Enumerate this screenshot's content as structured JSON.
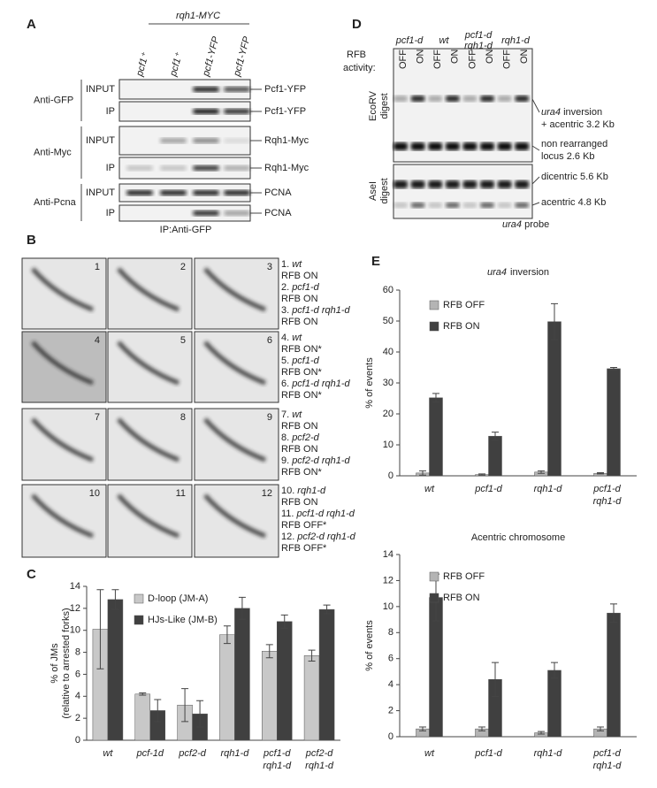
{
  "panel_a": {
    "label": "A",
    "header": "rqh1-MYC",
    "lanes": [
      "pcf1⁺",
      "pcf1⁺",
      "pcf1-YFP",
      "pcf1-YFP"
    ],
    "groups": [
      {
        "name": "Anti-GFP",
        "rows": [
          {
            "label": "INPUT",
            "band": "Pcf1-YFP"
          },
          {
            "label": "IP",
            "band": "Pcf1-YFP"
          }
        ]
      },
      {
        "name": "Anti-Myc",
        "rows": [
          {
            "label": "INPUT",
            "band": "Rqh1-Myc"
          },
          {
            "label": "IP",
            "band": "Rqh1-Myc"
          }
        ]
      },
      {
        "name": "Anti-Pcna",
        "rows": [
          {
            "label": "INPUT",
            "band": "PCNA"
          },
          {
            "label": "IP",
            "band": "PCNA"
          }
        ]
      }
    ],
    "footer": "IP:Anti-GFP"
  },
  "panel_b": {
    "label": "B",
    "gels": [
      {
        "number": "1",
        "index": "1.",
        "strain": "wt",
        "rfb": "RFB ON"
      },
      {
        "number": "2",
        "index": "2.",
        "strain": "pcf1-d",
        "rfb": "RFB ON"
      },
      {
        "number": "3",
        "index": "3.",
        "strain": "pcf1-d rqh1-d",
        "rfb": "RFB ON"
      },
      {
        "number": "4",
        "index": "4.",
        "strain": "wt",
        "rfb": "RFB ON*"
      },
      {
        "number": "5",
        "index": "5.",
        "strain": "pcf1-d",
        "rfb": "RFB ON*"
      },
      {
        "number": "6",
        "index": "6.",
        "strain": "pcf1-d rqh1-d",
        "rfb": "RFB ON*"
      },
      {
        "number": "7",
        "index": "7.",
        "strain": "wt",
        "rfb": "RFB ON"
      },
      {
        "number": "8",
        "index": "8.",
        "strain": "pcf2-d",
        "rfb": "RFB ON"
      },
      {
        "number": "9",
        "index": "9.",
        "strain": "pcf2-d rqh1-d",
        "rfb": "RFB ON*"
      },
      {
        "number": "10",
        "index": "10.",
        "strain": "rqh1-d",
        "rfb": "RFB ON"
      },
      {
        "number": "11",
        "index": "11.",
        "strain": "pcf1-d rqh1-d",
        "rfb": "RFB OFF*"
      },
      {
        "number": "12",
        "index": "12.",
        "strain": "pcf2-d rqh1-d",
        "rfb": "RFB OFF*"
      }
    ]
  },
  "panel_d": {
    "label": "D",
    "rfb_label": [
      "RFB",
      "activity:"
    ],
    "strains": [
      [
        "pcf1-d"
      ],
      [
        "wt"
      ],
      [
        "pcf1-d",
        "rqh1-d"
      ],
      [
        "rqh1-d"
      ]
    ],
    "lanes": [
      "OFF",
      "ON",
      "OFF",
      "ON",
      "OFF",
      "ON",
      "OFF",
      "ON"
    ],
    "digests": [
      [
        "EcoRV",
        "digest"
      ],
      [
        "AseI",
        "digest"
      ]
    ],
    "bands": {
      "inversion_italic": "ura4",
      "inversion": "inversion",
      "acentric_32": "+ acentric 3.2 Kb",
      "non_rearranged": "non rearranged",
      "locus": "locus 2.6 Kb",
      "dicentric": "dicentric 5.6 Kb",
      "acentric_48": "acentric 4.8 Kb"
    },
    "probe_italic": "ura4",
    "probe": "probe"
  },
  "chart_data": [
    {
      "type": "bar",
      "panel": "C",
      "ylabel": [
        "% of JMs",
        "(relative to arrested forks)"
      ],
      "categories": [
        [
          "wt"
        ],
        [
          "pcf-1d"
        ],
        [
          "pcf2-d"
        ],
        [
          "rqh1-d"
        ],
        [
          "pcf1-d",
          "rqh1-d"
        ],
        [
          "pcf2-d",
          "rqh1-d"
        ]
      ],
      "series": [
        {
          "name": "D-loop (JM-A)",
          "color": "#c8c8c8",
          "values": [
            10.1,
            4.2,
            3.2,
            9.6,
            8.1,
            7.7
          ],
          "errors": [
            3.6,
            0.1,
            1.5,
            0.8,
            0.6,
            0.5
          ]
        },
        {
          "name": "HJs-Like (JM-B)",
          "color": "#404040",
          "values": [
            12.8,
            2.7,
            2.4,
            12.0,
            10.8,
            11.9
          ],
          "errors": [
            0.9,
            1.0,
            1.2,
            1.0,
            0.6,
            0.4
          ]
        }
      ],
      "ylim": [
        0,
        14
      ],
      "yticks": [
        0,
        2,
        4,
        6,
        8,
        10,
        12,
        14
      ],
      "legend": "upper left"
    },
    {
      "type": "bar",
      "panel": "E",
      "title": [
        "ura4",
        "inversion"
      ],
      "ylabel": [
        "% of events"
      ],
      "categories": [
        [
          "wt"
        ],
        [
          "pcf1-d"
        ],
        [
          "rqh1-d"
        ],
        [
          "pcf1-d",
          "rqh1-d"
        ]
      ],
      "series": [
        {
          "name": "RFB OFF",
          "color": "#b4b4b4",
          "values": [
            0.9,
            0.4,
            1.2,
            0.8
          ],
          "errors": [
            0.7,
            0.2,
            0.4,
            0.2
          ]
        },
        {
          "name": "RFB ON",
          "color": "#404040",
          "values": [
            25.2,
            12.8,
            49.8,
            34.6
          ],
          "errors": [
            1.4,
            1.3,
            5.8,
            0.4
          ]
        }
      ],
      "ylim": [
        0,
        60
      ],
      "yticks": [
        0,
        10,
        20,
        30,
        40,
        50,
        60
      ],
      "legend": "upper left"
    },
    {
      "type": "bar",
      "title": [
        "Acentric chromosome"
      ],
      "ylabel": [
        "% of events"
      ],
      "categories": [
        [
          "wt"
        ],
        [
          "pcf1-d"
        ],
        [
          "rqh1-d"
        ],
        [
          "pcf1-d",
          "rqh1-d"
        ]
      ],
      "series": [
        {
          "name": "RFB OFF",
          "color": "#b4b4b4",
          "values": [
            0.6,
            0.6,
            0.3,
            0.6
          ],
          "errors": [
            0.15,
            0.15,
            0.1,
            0.15
          ]
        },
        {
          "name": "RFB ON",
          "color": "#404040",
          "values": [
            10.7,
            4.4,
            5.1,
            9.5
          ],
          "errors": [
            1.8,
            1.3,
            0.6,
            0.7
          ]
        }
      ],
      "ylim": [
        0,
        14
      ],
      "yticks": [
        0,
        2,
        4,
        6,
        8,
        10,
        12,
        14
      ],
      "legend": "upper left"
    }
  ]
}
